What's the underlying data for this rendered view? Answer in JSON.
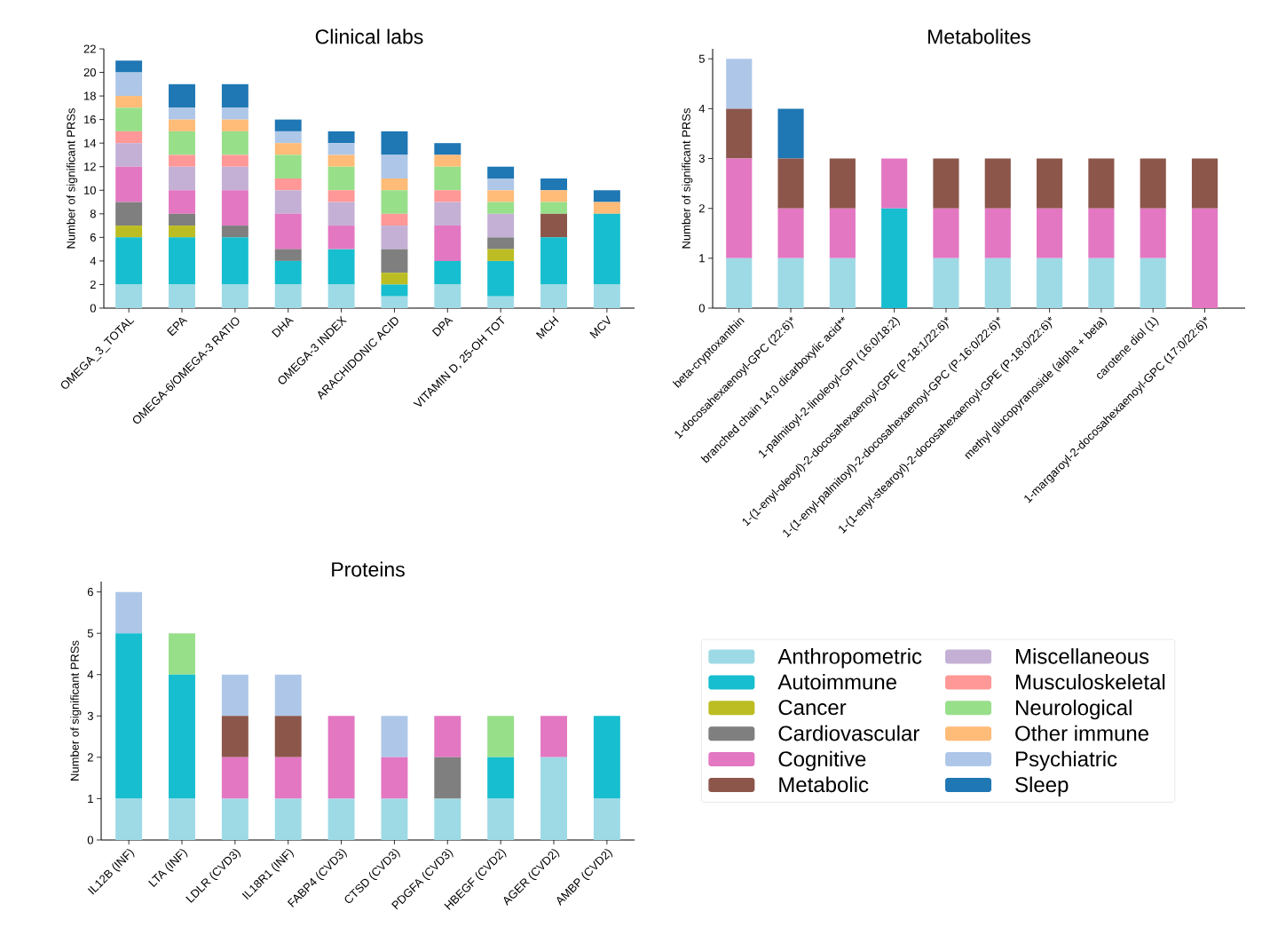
{
  "chart_data": [
    {
      "type": "bar",
      "stacked": true,
      "title": "Clinical labs",
      "ylabel": "Number of significant PRSs",
      "categories": [
        "OMEGA_3_TOTAL",
        "EPA",
        "OMEGA-6/OMEGA-3 RATIO",
        "DHA",
        "OMEGA-3 INDEX",
        "ARACHIDONIC ACID",
        "DPA",
        "VITAMIN D, 25-OH TOT",
        "MCH",
        "MCV"
      ],
      "ylim": [
        0,
        22
      ],
      "yticks": [
        0,
        2,
        4,
        6,
        8,
        10,
        12,
        14,
        16,
        18,
        20,
        22
      ],
      "series": [
        {
          "color": "#9edae5",
          "values": [
            2,
            2,
            2,
            2,
            2,
            1,
            2,
            1,
            2,
            2
          ]
        },
        {
          "color": "#17becf",
          "values": [
            4,
            4,
            4,
            2,
            3,
            1,
            2,
            3,
            4,
            6
          ]
        },
        {
          "color": "#bcbd22",
          "values": [
            1,
            1,
            0,
            0,
            0,
            1,
            0,
            1,
            0,
            0
          ]
        },
        {
          "color": "#7f7f7f",
          "values": [
            2,
            1,
            1,
            1,
            0,
            2,
            0,
            1,
            0,
            0
          ]
        },
        {
          "color": "#e377c2",
          "values": [
            3,
            2,
            3,
            3,
            2,
            0,
            3,
            0,
            0,
            0
          ]
        },
        {
          "color": "#8c564b",
          "values": [
            0,
            0,
            0,
            0,
            0,
            0,
            0,
            0,
            2,
            0
          ]
        },
        {
          "color": "#c5b0d5",
          "values": [
            2,
            2,
            2,
            2,
            2,
            2,
            2,
            2,
            0,
            0
          ]
        },
        {
          "color": "#ff9896",
          "values": [
            1,
            1,
            1,
            1,
            1,
            1,
            1,
            0,
            0,
            0
          ]
        },
        {
          "color": "#98df8a",
          "values": [
            2,
            2,
            2,
            2,
            2,
            2,
            2,
            1,
            1,
            0
          ]
        },
        {
          "color": "#ffbb78",
          "values": [
            1,
            1,
            1,
            1,
            1,
            1,
            1,
            1,
            1,
            1
          ]
        },
        {
          "color": "#aec7e8",
          "values": [
            2,
            1,
            1,
            1,
            1,
            2,
            0,
            1,
            0,
            0
          ]
        },
        {
          "color": "#1f77b4",
          "values": [
            1,
            2,
            2,
            1,
            1,
            2,
            1,
            1,
            1,
            1
          ]
        }
      ]
    },
    {
      "type": "bar",
      "stacked": true,
      "title": "Metabolites",
      "ylabel": "Number of significant PRSs",
      "categories": [
        "beta-cryptoxanthin",
        "1-docosahexaenoyl-GPC (22:6)*",
        "branched chain 14:0 dicarboxylic acid**",
        "1-palmitoyl-2-linoleoyl-GPI (16:0/18:2)",
        "1-(1-enyl-oleoyl)-2-docosahexaenoyl-GPE (P-18:1/22:6)*",
        "1-(1-enyl-palmitoyl)-2-docosahexaenoyl-GPC (P-16:0/22:6)*",
        "1-(1-enyl-stearoyl)-2-docosahexaenoyl-GPE (P-18:0/22:6)*",
        "methyl glucopyranoside (alpha + beta)",
        "carotene diol (1)",
        "1-margaroyl-2-docosahexaenoyl-GPC (17:0/22:6)*"
      ],
      "ylim": [
        0,
        5.2
      ],
      "yticks": [
        0,
        1,
        2,
        3,
        4,
        5
      ],
      "series": [
        {
          "color": "#9edae5",
          "values": [
            1,
            1,
            1,
            0,
            1,
            1,
            1,
            1,
            1,
            0
          ]
        },
        {
          "color": "#17becf",
          "values": [
            0,
            0,
            0,
            2,
            0,
            0,
            0,
            0,
            0,
            0
          ]
        },
        {
          "color": "#e377c2",
          "values": [
            2,
            1,
            1,
            1,
            1,
            1,
            1,
            1,
            1,
            2
          ]
        },
        {
          "color": "#8c564b",
          "values": [
            1,
            1,
            1,
            0,
            1,
            1,
            1,
            1,
            1,
            1
          ]
        },
        {
          "color": "#aec7e8",
          "values": [
            1,
            0,
            0,
            0,
            0,
            0,
            0,
            0,
            0,
            0
          ]
        },
        {
          "color": "#1f77b4",
          "values": [
            0,
            1,
            0,
            0,
            0,
            0,
            0,
            0,
            0,
            0
          ]
        }
      ]
    },
    {
      "type": "bar",
      "stacked": true,
      "title": "Proteins",
      "ylabel": "Number of significant PRSs",
      "legend": "right",
      "categories": [
        "IL12B (INF)",
        "LTA (INF)",
        "LDLR (CVD3)",
        "IL18R1 (INF)",
        "FABP4 (CVD3)",
        "CTSD (CVD3)",
        "PDGFA (CVD3)",
        "HBEGF (CVD2)",
        "AGER (CVD2)",
        "AMBP (CVD2)"
      ],
      "ylim": [
        0,
        6.25
      ],
      "yticks": [
        0,
        1,
        2,
        3,
        4,
        5,
        6
      ],
      "series": [
        {
          "name": "Anthropometric",
          "color": "#9edae5",
          "values": [
            1,
            1,
            1,
            1,
            1,
            1,
            1,
            1,
            2,
            1
          ]
        },
        {
          "name": "Autoimmune",
          "color": "#17becf",
          "values": [
            4,
            3,
            0,
            0,
            0,
            0,
            0,
            1,
            0,
            2
          ]
        },
        {
          "name": "Cancer",
          "color": "#bcbd22",
          "values": [
            0,
            0,
            0,
            0,
            0,
            0,
            0,
            0,
            0,
            0
          ]
        },
        {
          "name": "Cardiovascular",
          "color": "#7f7f7f",
          "values": [
            0,
            0,
            0,
            0,
            0,
            0,
            1,
            0,
            0,
            0
          ]
        },
        {
          "name": "Cognitive",
          "color": "#e377c2",
          "values": [
            0,
            0,
            1,
            1,
            2,
            1,
            1,
            0,
            1,
            0
          ]
        },
        {
          "name": "Metabolic",
          "color": "#8c564b",
          "values": [
            0,
            0,
            1,
            1,
            0,
            0,
            0,
            0,
            0,
            0
          ]
        },
        {
          "name": "Miscellaneous",
          "color": "#c5b0d5",
          "values": [
            0,
            0,
            0,
            0,
            0,
            0,
            0,
            0,
            0,
            0
          ]
        },
        {
          "name": "Musculoskeletal",
          "color": "#ff9896",
          "values": [
            0,
            0,
            0,
            0,
            0,
            0,
            0,
            0,
            0,
            0
          ]
        },
        {
          "name": "Neurological",
          "color": "#98df8a",
          "values": [
            0,
            1,
            0,
            0,
            0,
            0,
            0,
            1,
            0,
            0
          ]
        },
        {
          "name": "Other immune",
          "color": "#ffbb78",
          "values": [
            0,
            0,
            0,
            0,
            0,
            0,
            0,
            0,
            0,
            0
          ]
        },
        {
          "name": "Psychiatric",
          "color": "#aec7e8",
          "values": [
            1,
            0,
            1,
            1,
            0,
            1,
            0,
            0,
            0,
            0
          ]
        },
        {
          "name": "Sleep",
          "color": "#1f77b4",
          "values": [
            0,
            0,
            0,
            0,
            0,
            0,
            0,
            0,
            0,
            0
          ]
        }
      ]
    }
  ]
}
